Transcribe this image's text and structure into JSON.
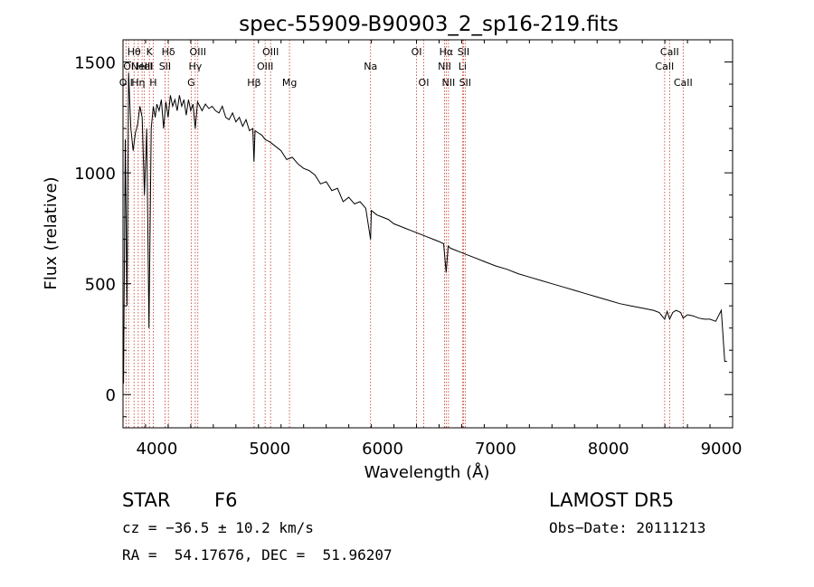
{
  "chart_data": {
    "type": "line",
    "title": "spec-55909-B90903_2_sp16-219.fits",
    "xlabel": "Wavelength (Å)",
    "ylabel": "Flux (relative)",
    "xlim": [
      3700,
      9100
    ],
    "ylim": [
      -150,
      1600
    ],
    "xticks": [
      4000,
      5000,
      6000,
      7000,
      8000,
      9000
    ],
    "yticks": [
      0,
      500,
      1000,
      1500
    ],
    "grid": false,
    "series": [
      {
        "x": [
          3705,
          3720,
          3735,
          3750,
          3770,
          3790,
          3810,
          3830,
          3850,
          3870,
          3890,
          3910,
          3930,
          3950,
          3968,
          3985,
          4000,
          4020,
          4040,
          4060,
          4080,
          4100,
          4120,
          4140,
          4160,
          4180,
          4200,
          4220,
          4240,
          4260,
          4280,
          4300,
          4320,
          4340,
          4360,
          4380,
          4400,
          4430,
          4460,
          4490,
          4520,
          4550,
          4580,
          4610,
          4640,
          4670,
          4700,
          4730,
          4760,
          4790,
          4820,
          4850,
          4860,
          4870,
          4900,
          4930,
          4960,
          5000,
          5050,
          5100,
          5150,
          5200,
          5250,
          5300,
          5350,
          5400,
          5450,
          5500,
          5550,
          5600,
          5650,
          5700,
          5750,
          5800,
          5850,
          5893,
          5900,
          5950,
          6000,
          6050,
          6100,
          6150,
          6200,
          6250,
          6300,
          6350,
          6400,
          6450,
          6500,
          6540,
          6563,
          6580,
          6600,
          6650,
          6700,
          6750,
          6800,
          6900,
          7000,
          7100,
          7200,
          7300,
          7400,
          7500,
          7600,
          7700,
          7800,
          7900,
          8000,
          8100,
          8200,
          8300,
          8400,
          8450,
          8498,
          8520,
          8542,
          8570,
          8600,
          8640,
          8662,
          8700,
          8750,
          8800,
          8850,
          8900,
          8950,
          9000,
          9030,
          9050
        ],
        "y": [
          50,
          1150,
          400,
          1450,
          1200,
          1100,
          1180,
          1220,
          1300,
          1250,
          900,
          1200,
          300,
          1200,
          1300,
          1250,
          1310,
          1280,
          1330,
          1200,
          1320,
          1250,
          1350,
          1300,
          1330,
          1280,
          1350,
          1300,
          1330,
          1260,
          1330,
          1280,
          1310,
          1200,
          1320,
          1300,
          1280,
          1310,
          1290,
          1300,
          1280,
          1270,
          1300,
          1250,
          1240,
          1270,
          1230,
          1250,
          1210,
          1240,
          1190,
          1200,
          1050,
          1190,
          1180,
          1170,
          1150,
          1140,
          1120,
          1100,
          1060,
          1070,
          1040,
          1020,
          1010,
          990,
          950,
          960,
          920,
          930,
          870,
          890,
          860,
          870,
          840,
          700,
          830,
          810,
          800,
          790,
          770,
          760,
          750,
          740,
          730,
          720,
          710,
          700,
          690,
          680,
          550,
          670,
          660,
          650,
          640,
          630,
          620,
          600,
          580,
          565,
          545,
          530,
          515,
          500,
          485,
          470,
          455,
          440,
          425,
          410,
          400,
          390,
          380,
          370,
          340,
          375,
          340,
          370,
          380,
          370,
          345,
          360,
          355,
          345,
          340,
          340,
          330,
          380,
          150,
          150
        ]
      }
    ],
    "lines": [
      {
        "x": 3727,
        "label": "OII",
        "row": 3
      },
      {
        "x": 3750,
        "label": "OI",
        "row": 2
      },
      {
        "x": 3798,
        "label": "Hθ",
        "row": 1
      },
      {
        "x": 3835,
        "label": "Hη",
        "row": 3
      },
      {
        "x": 3869,
        "label": "NeIII",
        "row": 2
      },
      {
        "x": 3889,
        "label": "HeI",
        "row": 2
      },
      {
        "x": 3934,
        "label": "K",
        "row": 1
      },
      {
        "x": 3968,
        "label": "H",
        "row": 3
      },
      {
        "x": 4072,
        "label": "SII",
        "row": 2
      },
      {
        "x": 4102,
        "label": "Hδ",
        "row": 1
      },
      {
        "x": 4304,
        "label": "G",
        "row": 3
      },
      {
        "x": 4340,
        "label": "Hγ",
        "row": 2
      },
      {
        "x": 4363,
        "label": "OIII",
        "row": 1
      },
      {
        "x": 4861,
        "label": "Hβ",
        "row": 3
      },
      {
        "x": 4959,
        "label": "OIII",
        "row": 2
      },
      {
        "x": 5007,
        "label": "OIII",
        "row": 1
      },
      {
        "x": 5175,
        "label": "Mg",
        "row": 3
      },
      {
        "x": 5893,
        "label": "Na",
        "row": 2
      },
      {
        "x": 6300,
        "label": "OI",
        "row": 1
      },
      {
        "x": 6364,
        "label": "OI",
        "row": 3
      },
      {
        "x": 6548,
        "label": "NII",
        "row": 2
      },
      {
        "x": 6563,
        "label": "Hα",
        "row": 1
      },
      {
        "x": 6583,
        "label": "NII",
        "row": 3
      },
      {
        "x": 6707,
        "label": "Li",
        "row": 2
      },
      {
        "x": 6716,
        "label": "SII",
        "row": 1
      },
      {
        "x": 6731,
        "label": "SII",
        "row": 3
      },
      {
        "x": 8498,
        "label": "CaII",
        "row": 2
      },
      {
        "x": 8542,
        "label": "CaII",
        "row": 1
      },
      {
        "x": 8662,
        "label": "CaII",
        "row": 3
      }
    ]
  },
  "info": {
    "class_label": "STAR",
    "subclass": "F6",
    "survey": "LAMOST DR5",
    "redshift": "cz = −36.5 ± 10.2 km/s",
    "obs_date": "Obs−Date: 20111213",
    "coords": "RA =  54.17676, DEC =  51.96207"
  },
  "colors": {
    "line_marker": "#c0392b",
    "spectrum": "#000000"
  }
}
